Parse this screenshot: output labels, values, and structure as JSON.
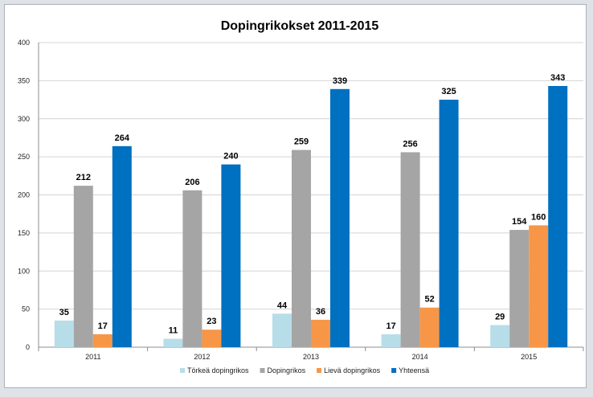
{
  "chart_data": {
    "type": "bar",
    "title": "Dopingrikokset 2011-2015",
    "xlabel": "",
    "ylabel": "",
    "categories": [
      "2011",
      "2012",
      "2013",
      "2014",
      "2015"
    ],
    "ylim": [
      0,
      400
    ],
    "yticks": [
      0,
      50,
      100,
      150,
      200,
      250,
      300,
      350,
      400
    ],
    "grid": true,
    "legend_position": "bottom",
    "data_labels": true,
    "series": [
      {
        "name": "Törkeä dopingrikos",
        "color": "#b7dde8",
        "values": [
          35,
          11,
          44,
          17,
          29
        ]
      },
      {
        "name": "Dopingrikos",
        "color": "#a5a5a5",
        "values": [
          212,
          206,
          259,
          256,
          154
        ]
      },
      {
        "name": "Lievä dopingrikos",
        "color": "#f79646",
        "values": [
          17,
          23,
          36,
          52,
          160
        ]
      },
      {
        "name": "Yhteensä",
        "color": "#0070c0",
        "values": [
          264,
          240,
          339,
          325,
          343
        ]
      }
    ]
  }
}
